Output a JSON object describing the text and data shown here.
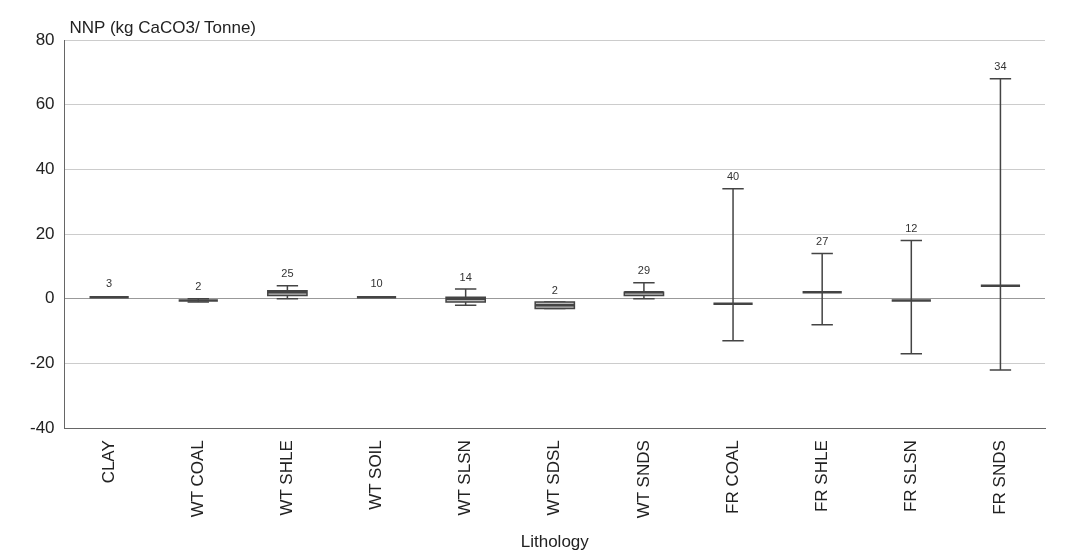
{
  "chart_data": {
    "type": "box",
    "xlabel": "Lithology",
    "ylabel": "NNP (kg CaCO3/ Tonne)",
    "categories": [
      "CLAY",
      "WT COAL",
      "WT SHLE",
      "WT SOIL",
      "WT SLSN",
      "WT SDSL",
      "WT SNDS",
      "FR COAL",
      "FR SHLE",
      "FR SLSN",
      "FR SNDS"
    ],
    "color": "#444444",
    "boxes": [
      {
        "low": 0.5,
        "q1": 0.5,
        "median": 0.5,
        "q3": 0.5,
        "high": 0.5
      },
      {
        "low": -1,
        "q1": -0.5,
        "median": -0.5,
        "q3": -0.5,
        "high": 0
      },
      {
        "low": 0,
        "q1": 1,
        "median": 2,
        "q3": 2.5,
        "high": 4
      },
      {
        "low": 0.5,
        "q1": 0.5,
        "median": 0.5,
        "q3": 0.5,
        "high": 0.5
      },
      {
        "low": -2,
        "q1": -1,
        "median": 0,
        "q3": 0.5,
        "high": 3
      },
      {
        "low": -3,
        "q1": -3,
        "median": -2,
        "q3": -1,
        "high": -1
      },
      {
        "low": 0,
        "q1": 1,
        "median": 2,
        "q3": 2,
        "high": 5
      },
      {
        "low": -13,
        "q1": -1.5,
        "median": -1.5,
        "q3": -1.5,
        "high": 34
      },
      {
        "low": -8,
        "q1": 2,
        "median": 2,
        "q3": 2,
        "high": 14
      },
      {
        "low": -17,
        "q1": -0.5,
        "median": -0.5,
        "q3": -0.5,
        "high": 18
      },
      {
        "low": -22,
        "q1": 4,
        "median": 4,
        "q3": 4,
        "high": 68
      }
    ],
    "annotations": [
      {
        "text": "3",
        "x": "CLAY",
        "y": 1
      },
      {
        "text": "2",
        "x": "WT COAL",
        "y": 0
      },
      {
        "text": "25",
        "x": "WT SHLE",
        "y": 4
      },
      {
        "text": "10",
        "x": "WT SOIL",
        "y": 1
      },
      {
        "text": "14",
        "x": "WT SLSN",
        "y": 3
      },
      {
        "text": "2",
        "x": "WT SDSL",
        "y": -1
      },
      {
        "text": "29",
        "x": "WT SNDS",
        "y": 5
      },
      {
        "text": "40",
        "x": "FR COAL",
        "y": 34
      },
      {
        "text": "27",
        "x": "FR SHLE",
        "y": 14
      },
      {
        "text": "12",
        "x": "FR SLSN",
        "y": 18
      },
      {
        "text": "34",
        "x": "FR SNDS",
        "y": 68
      }
    ],
    "ylim": [
      -40,
      80
    ],
    "yticks": [
      -40,
      -20,
      0,
      20,
      40,
      60,
      80
    ],
    "grid": "y"
  }
}
